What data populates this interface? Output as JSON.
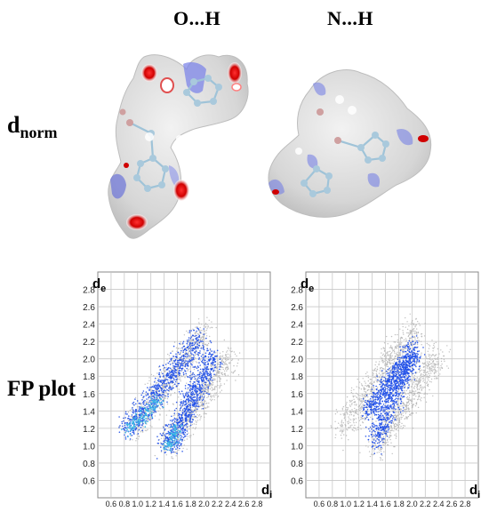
{
  "columns": [
    "O...H",
    "N...H"
  ],
  "rows": {
    "dnorm_main": "d",
    "dnorm_sub": "norm",
    "fp": "FP plot"
  },
  "fp_axes": {
    "y_main": "d",
    "y_sub": "e",
    "x_main": "d",
    "x_sub": "i",
    "y_ticks": [
      "2.8",
      "2.6",
      "2.4",
      "2.2",
      "2.0",
      "1.8",
      "1.6",
      "1.4",
      "1.2",
      "1.0",
      "0.8",
      "0.6"
    ],
    "x_ticks": [
      "0.6",
      "0.8",
      "1.0",
      "1.2",
      "1.4",
      "1.6",
      "1.8",
      "2.0",
      "2.2",
      "2.4",
      "2.6",
      "2.8"
    ]
  },
  "colors": {
    "surface": "#d9d9d9",
    "contact_red": "#e00000",
    "contact_blue": "#4a5ff0",
    "fp_blue": "#1f4fe8",
    "fp_cyan": "#39b4e6",
    "fp_gray": "#b5b5b5"
  }
}
